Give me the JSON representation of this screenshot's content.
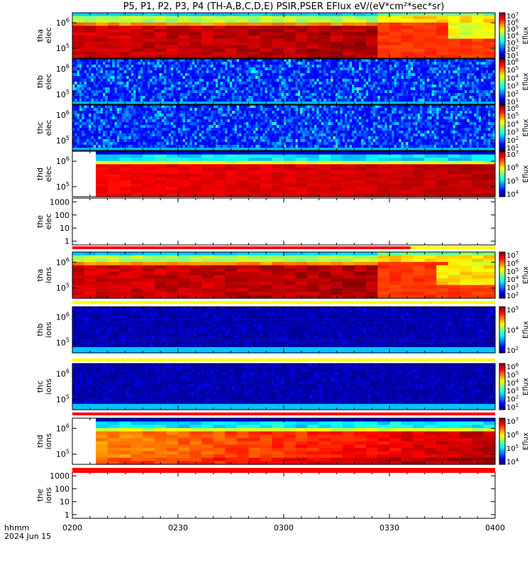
{
  "title": "P5, P1, P2, P3, P4 (TH-A,B,C,D,E) PSIR,PSER EFlux eV/(eV*cm²*sec*sr)",
  "footer": {
    "line1": "hhmm",
    "line2": "2024 Jun 15"
  },
  "chart_data": {
    "type": "heatmap",
    "x_axis": {
      "ticks": [
        "0200",
        "0230",
        "0300",
        "0330",
        "0400"
      ],
      "range": [
        "02:00",
        "04:00"
      ]
    },
    "colorbar_label": "Eflux",
    "panels": [
      {
        "probe": "tha",
        "species": "elec",
        "yticks": [
          "10^5",
          "10^6"
        ],
        "cbar_ticks": [
          "10^1",
          "10^2",
          "10^3",
          "10^4",
          "10^5",
          "10^6",
          "10^7"
        ],
        "pattern": "plasma_sheet_elec"
      },
      {
        "probe": "thb",
        "species": "elec",
        "yticks": [
          "10^5",
          "10^6"
        ],
        "cbar_ticks": [
          "10^1",
          "10^2",
          "10^3",
          "10^4",
          "10^5",
          "10^6"
        ],
        "pattern": "noise_blue"
      },
      {
        "probe": "thc",
        "species": "elec",
        "yticks": [
          "10^5",
          "10^6"
        ],
        "cbar_ticks": [
          "10^1",
          "10^2",
          "10^3",
          "10^4",
          "10^5",
          "10^6"
        ],
        "pattern": "noise_blue"
      },
      {
        "probe": "thd",
        "species": "elec",
        "yticks": [
          "10^5",
          "10^6"
        ],
        "cbar_ticks": [
          "10^4",
          "10^5",
          "10^6",
          "10^7"
        ],
        "pattern": "thd_elec"
      },
      {
        "probe": "the",
        "species": "elec",
        "yticks": [
          "1",
          "10",
          "100",
          "1000"
        ],
        "pattern": "empty"
      },
      {
        "probe": "tha",
        "species": "ions",
        "yticks": [
          "10^5",
          "10^6"
        ],
        "cbar_ticks": [
          "10^2",
          "10^3",
          "10^4",
          "10^5",
          "10^6",
          "10^7"
        ],
        "pattern": "plasma_sheet_ions"
      },
      {
        "probe": "thb",
        "species": "ions",
        "yticks": [
          "10^5",
          "10^6"
        ],
        "cbar_ticks": [
          "10^2",
          "10^4",
          "10^5"
        ],
        "pattern": "noise_purple"
      },
      {
        "probe": "thc",
        "species": "ions",
        "yticks": [
          "10^5",
          "10^6"
        ],
        "cbar_ticks": [
          "10^1",
          "10^2",
          "10^3",
          "10^4",
          "10^5",
          "10^6"
        ],
        "pattern": "noise_purple"
      },
      {
        "probe": "thd",
        "species": "ions",
        "yticks": [
          "10^5",
          "10^6"
        ],
        "cbar_ticks": [
          "10^4",
          "10^5",
          "10^6",
          "10^7"
        ],
        "pattern": "thd_ions"
      },
      {
        "probe": "the",
        "species": "ions",
        "yticks": [
          "1",
          "10",
          "100",
          "1000"
        ],
        "pattern": "empty"
      }
    ],
    "mode_bars": [
      {
        "after_panel": 4,
        "segments": [
          {
            "from": 0.0,
            "to": 0.8,
            "color": "#ff0000"
          },
          {
            "from": 0.8,
            "to": 1.0,
            "color": "#ffff00"
          }
        ]
      },
      {
        "after_panel": 5,
        "segments": [
          {
            "from": 0.0,
            "to": 1.0,
            "color": "#ffff00"
          }
        ]
      },
      {
        "after_panel": 6,
        "segments": [
          {
            "from": 0.0,
            "to": 1.0,
            "color": "#ffff00"
          }
        ]
      },
      {
        "after_panel": 7,
        "segments": [
          {
            "from": 0.0,
            "to": 1.0,
            "color": "#ff0000"
          }
        ]
      },
      {
        "after_panel": 8,
        "segments": [
          {
            "from": 0.0,
            "to": 1.0,
            "color": "#ff0000"
          }
        ]
      },
      {
        "after_panel": 9,
        "segments": [
          {
            "from": 0.0,
            "to": 1.0,
            "color": "#ff0000"
          }
        ]
      }
    ]
  }
}
